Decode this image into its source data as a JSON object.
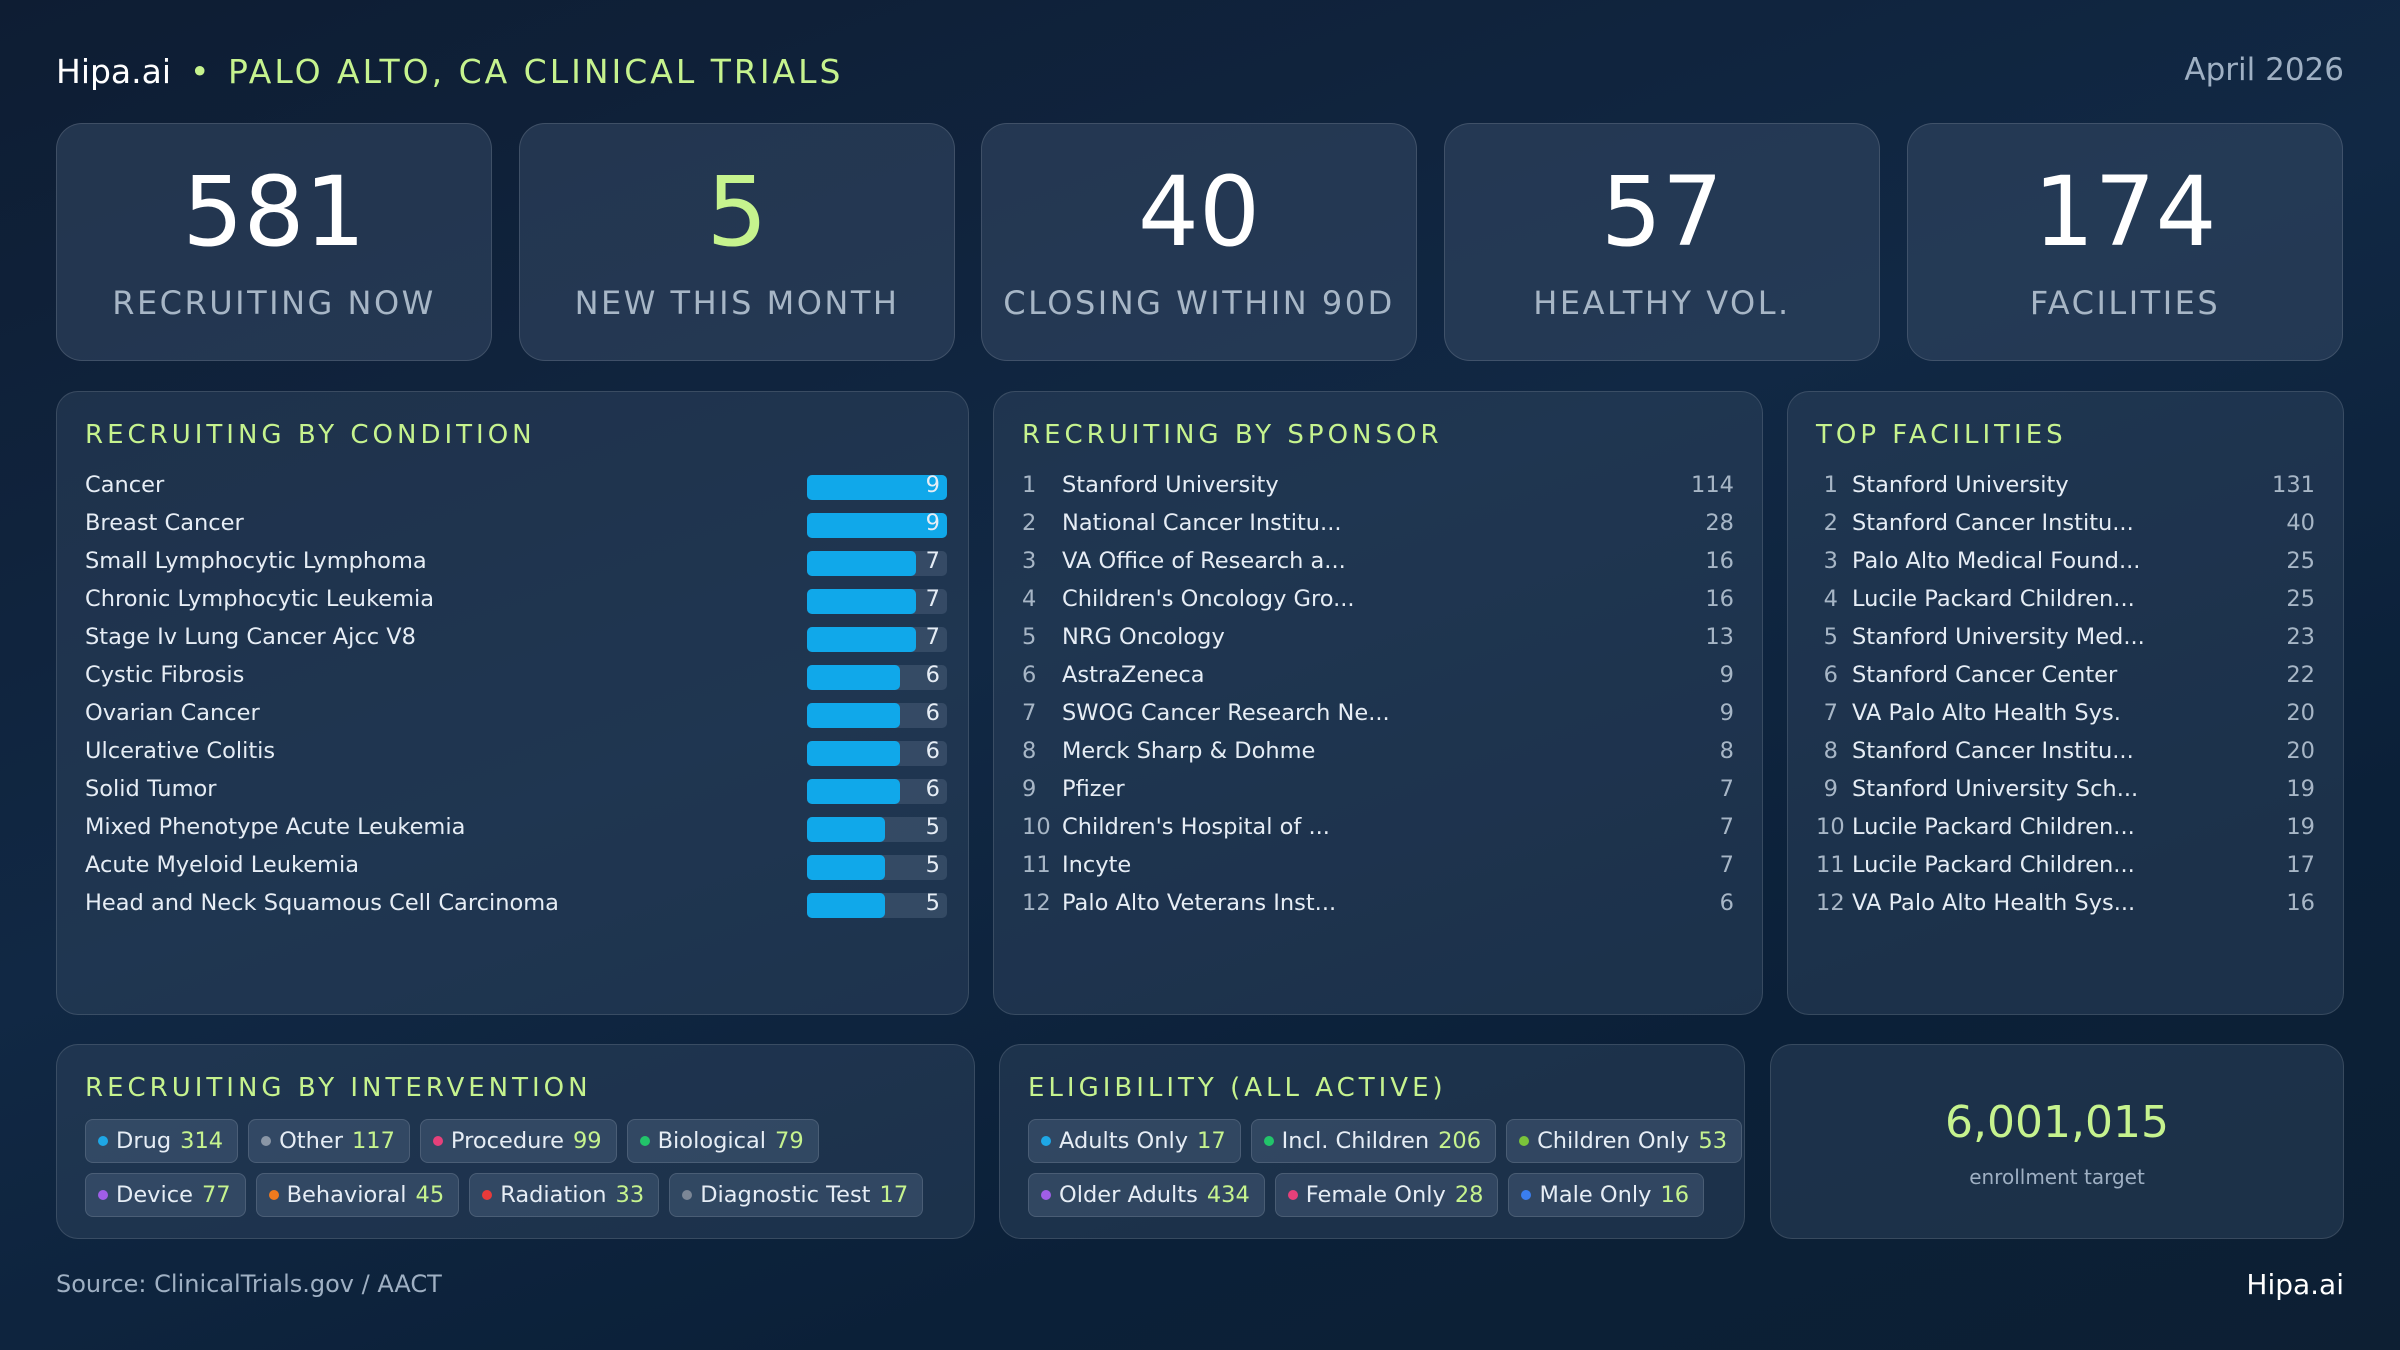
{
  "header": {
    "brand": "Hipa.ai",
    "bullet": "•",
    "subtitle": "PALO ALTO, CA CLINICAL TRIALS",
    "date": "April 2026"
  },
  "kpis": [
    {
      "value": "581",
      "label": "RECRUITING NOW",
      "highlight": false
    },
    {
      "value": "5",
      "label": "NEW THIS MONTH",
      "highlight": true
    },
    {
      "value": "40",
      "label": "CLOSING WITHIN 90D",
      "highlight": false
    },
    {
      "value": "57",
      "label": "HEALTHY VOL.",
      "highlight": false
    },
    {
      "value": "174",
      "label": "FACILITIES",
      "highlight": false
    }
  ],
  "conditions": {
    "title": "RECRUITING BY CONDITION",
    "max": 9,
    "items": [
      {
        "name": "Cancer",
        "count": 9
      },
      {
        "name": "Breast Cancer",
        "count": 9
      },
      {
        "name": "Small Lymphocytic Lymphoma",
        "count": 7
      },
      {
        "name": "Chronic Lymphocytic Leukemia",
        "count": 7
      },
      {
        "name": "Stage Iv Lung Cancer Ajcc V8",
        "count": 7
      },
      {
        "name": "Cystic Fibrosis",
        "count": 6
      },
      {
        "name": "Ovarian Cancer",
        "count": 6
      },
      {
        "name": "Ulcerative Colitis",
        "count": 6
      },
      {
        "name": "Solid Tumor",
        "count": 6
      },
      {
        "name": "Mixed Phenotype Acute Leukemia",
        "count": 5
      },
      {
        "name": "Acute Myeloid Leukemia",
        "count": 5
      },
      {
        "name": "Head and Neck Squamous Cell Carcinoma",
        "count": 5
      }
    ]
  },
  "sponsors": {
    "title": "RECRUITING BY SPONSOR",
    "items": [
      {
        "rank": "1",
        "name": "Stanford University",
        "count": "114"
      },
      {
        "rank": "2",
        "name": "National Cancer Institu...",
        "count": "28"
      },
      {
        "rank": "3",
        "name": "VA Office of Research a...",
        "count": "16"
      },
      {
        "rank": "4",
        "name": "Children's Oncology Gro...",
        "count": "16"
      },
      {
        "rank": "5",
        "name": "NRG Oncology",
        "count": "13"
      },
      {
        "rank": "6",
        "name": "AstraZeneca",
        "count": "9"
      },
      {
        "rank": "7",
        "name": "SWOG Cancer Research Ne...",
        "count": "9"
      },
      {
        "rank": "8",
        "name": "Merck Sharp & Dohme",
        "count": "8"
      },
      {
        "rank": "9",
        "name": "Pfizer",
        "count": "7"
      },
      {
        "rank": "10",
        "name": "Children's Hospital of ...",
        "count": "7"
      },
      {
        "rank": "11",
        "name": "Incyte",
        "count": "7"
      },
      {
        "rank": "12",
        "name": "Palo Alto Veterans Inst...",
        "count": "6"
      }
    ]
  },
  "facilities": {
    "title": "TOP FACILITIES",
    "items": [
      {
        "rank": "1",
        "name": "Stanford University",
        "count": "131"
      },
      {
        "rank": "2",
        "name": "Stanford Cancer Institu...",
        "count": "40"
      },
      {
        "rank": "3",
        "name": "Palo Alto Medical Found...",
        "count": "25"
      },
      {
        "rank": "4",
        "name": "Lucile Packard Children...",
        "count": "25"
      },
      {
        "rank": "5",
        "name": "Stanford University Med...",
        "count": "23"
      },
      {
        "rank": "6",
        "name": "Stanford Cancer Center",
        "count": "22"
      },
      {
        "rank": "7",
        "name": "VA Palo Alto Health Sys.",
        "count": "20"
      },
      {
        "rank": "8",
        "name": "Stanford Cancer Institu...",
        "count": "20"
      },
      {
        "rank": "9",
        "name": "Stanford University Sch...",
        "count": "19"
      },
      {
        "rank": "10",
        "name": "Lucile Packard Children...",
        "count": "19"
      },
      {
        "rank": "11",
        "name": "Lucile Packard Children...",
        "count": "17"
      },
      {
        "rank": "12",
        "name": "VA Palo Alto Health Sys...",
        "count": "16"
      }
    ]
  },
  "interventions": {
    "title": "RECRUITING BY INTERVENTION",
    "rows": [
      [
        {
          "label": "Drug",
          "value": "314",
          "color": "#1ea7e6"
        },
        {
          "label": "Other",
          "value": "117",
          "color": "#8a96a6"
        },
        {
          "label": "Procedure",
          "value": "99",
          "color": "#e6407a"
        },
        {
          "label": "Biological",
          "value": "79",
          "color": "#22c46a"
        }
      ],
      [
        {
          "label": "Device",
          "value": "77",
          "color": "#a05ee8"
        },
        {
          "label": "Behavioral",
          "value": "45",
          "color": "#f07a1e"
        },
        {
          "label": "Radiation",
          "value": "33",
          "color": "#e83a3a"
        },
        {
          "label": "Diagnostic Test",
          "value": "17",
          "color": "#7c8796"
        }
      ]
    ]
  },
  "eligibility": {
    "title": "ELIGIBILITY (ALL ACTIVE)",
    "rows": [
      [
        {
          "label": "Adults Only",
          "value": "17",
          "color": "#1ea7e6"
        },
        {
          "label": "Incl. Children",
          "value": "206",
          "color": "#22c46a"
        },
        {
          "label": "Children Only",
          "value": "53",
          "color": "#7ac43a"
        }
      ],
      [
        {
          "label": "Older Adults",
          "value": "434",
          "color": "#a05ee8"
        },
        {
          "label": "Female Only",
          "value": "28",
          "color": "#e6407a"
        },
        {
          "label": "Male Only",
          "value": "16",
          "color": "#3a7ef0"
        }
      ]
    ]
  },
  "enrollment": {
    "value": "6,001,015",
    "label": "enrollment target"
  },
  "footer": {
    "source": "Source: ClinicalTrials.gov / AACT",
    "brand": "Hipa.ai"
  }
}
